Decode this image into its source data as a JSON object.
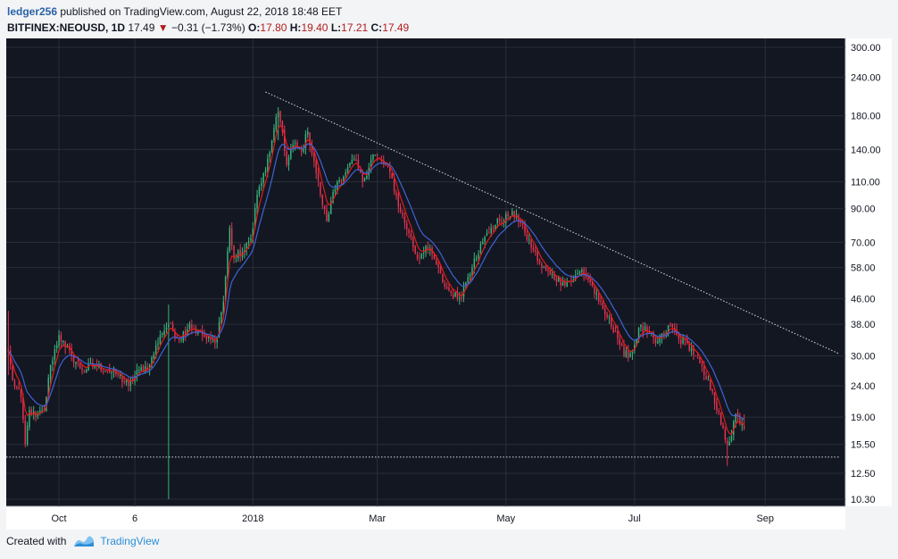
{
  "header": {
    "author": "ledger256",
    "published_text": " published on TradingView.com, August 22, 2018 18:48 EET",
    "symbol": "BITFINEX:NEOUSD, 1D",
    "last": "17.49",
    "change": "−0.31 (−1.73%)",
    "o_label": "O:",
    "o_value": "17.80",
    "h_label": "H:",
    "h_value": "19.40",
    "l_label": "L:",
    "l_value": "17.21",
    "c_label": "C:",
    "c_value": "17.49"
  },
  "footer": {
    "created_with": "Created with",
    "brand": "TradingView"
  },
  "colors": {
    "background": "#131722",
    "up": "#3bb37a",
    "down": "#e3344f",
    "ema_fast": "#e31b1b",
    "ema_slow": "#3f63d6",
    "trendline": "#d9d9d9",
    "grid": "#2a2e39"
  },
  "chart_data": {
    "type": "candlestick",
    "symbol": "BITFINEX:NEOUSD",
    "interval": "1D",
    "scale": "log",
    "ylim": [
      10.3,
      300
    ],
    "x_range": [
      "2017-09-06",
      "2018-10-09"
    ],
    "y_ticks": [
      300,
      240,
      180,
      140,
      110,
      90,
      70,
      58,
      46,
      38,
      30,
      24,
      19,
      15.5,
      12.5,
      10.3
    ],
    "y_tick_labels": [
      "300.00",
      "240.00",
      "180.00",
      "140.00",
      "110.00",
      "90.00",
      "70.00",
      "58.00",
      "46.00",
      "38.00",
      "30.00",
      "24.00",
      "19.00",
      "15.50",
      "12.50",
      "10.30"
    ],
    "x_ticks": [
      {
        "label": "Oct",
        "date": "2017-10-01"
      },
      {
        "label": "6",
        "date": "2017-11-06"
      },
      {
        "label": "2018",
        "date": "2018-01-01"
      },
      {
        "label": "Mar",
        "date": "2018-03-01"
      },
      {
        "label": "May",
        "date": "2018-05-01"
      },
      {
        "label": "Jul",
        "date": "2018-07-01"
      },
      {
        "label": "Sep",
        "date": "2018-09-01"
      }
    ],
    "price_anchors": [
      [
        "2017-09-07",
        31
      ],
      [
        "2017-09-09",
        25
      ],
      [
        "2017-09-13",
        22
      ],
      [
        "2017-09-15",
        15.5
      ],
      [
        "2017-09-17",
        20
      ],
      [
        "2017-09-20",
        19
      ],
      [
        "2017-09-24",
        20
      ],
      [
        "2017-09-27",
        28
      ],
      [
        "2017-10-01",
        35
      ],
      [
        "2017-10-04",
        32
      ],
      [
        "2017-10-07",
        30
      ],
      [
        "2017-10-12",
        27
      ],
      [
        "2017-10-18",
        28
      ],
      [
        "2017-10-24",
        27
      ],
      [
        "2017-10-29",
        26
      ],
      [
        "2017-11-03",
        24
      ],
      [
        "2017-11-08",
        27
      ],
      [
        "2017-11-13",
        28
      ],
      [
        "2017-11-18",
        35
      ],
      [
        "2017-11-22",
        38
      ],
      [
        "2017-11-27",
        34
      ],
      [
        "2017-12-02",
        38
      ],
      [
        "2017-12-06",
        36
      ],
      [
        "2017-12-10",
        34
      ],
      [
        "2017-12-14",
        33
      ],
      [
        "2017-12-18",
        45
      ],
      [
        "2017-12-21",
        78
      ],
      [
        "2017-12-23",
        62
      ],
      [
        "2017-12-28",
        66
      ],
      [
        "2017-12-31",
        72
      ],
      [
        "2018-01-03",
        100
      ],
      [
        "2018-01-07",
        120
      ],
      [
        "2018-01-10",
        150
      ],
      [
        "2018-01-13",
        185
      ],
      [
        "2018-01-15",
        160
      ],
      [
        "2018-01-17",
        125
      ],
      [
        "2018-01-20",
        145
      ],
      [
        "2018-01-24",
        138
      ],
      [
        "2018-01-27",
        160
      ],
      [
        "2018-01-30",
        128
      ],
      [
        "2018-02-02",
        100
      ],
      [
        "2018-02-05",
        82
      ],
      [
        "2018-02-07",
        95
      ],
      [
        "2018-02-10",
        110
      ],
      [
        "2018-02-14",
        118
      ],
      [
        "2018-02-18",
        130
      ],
      [
        "2018-02-22",
        110
      ],
      [
        "2018-02-27",
        135
      ],
      [
        "2018-03-03",
        128
      ],
      [
        "2018-03-07",
        118
      ],
      [
        "2018-03-12",
        88
      ],
      [
        "2018-03-16",
        75
      ],
      [
        "2018-03-20",
        62
      ],
      [
        "2018-03-24",
        68
      ],
      [
        "2018-03-28",
        62
      ],
      [
        "2018-04-01",
        52
      ],
      [
        "2018-04-05",
        48
      ],
      [
        "2018-04-09",
        46
      ],
      [
        "2018-04-12",
        52
      ],
      [
        "2018-04-16",
        62
      ],
      [
        "2018-04-20",
        70
      ],
      [
        "2018-04-24",
        78
      ],
      [
        "2018-04-28",
        82
      ],
      [
        "2018-05-02",
        85
      ],
      [
        "2018-05-06",
        86
      ],
      [
        "2018-05-10",
        75
      ],
      [
        "2018-05-14",
        66
      ],
      [
        "2018-05-18",
        58
      ],
      [
        "2018-05-22",
        55
      ],
      [
        "2018-05-28",
        52
      ],
      [
        "2018-06-02",
        53
      ],
      [
        "2018-06-06",
        57
      ],
      [
        "2018-06-10",
        52
      ],
      [
        "2018-06-14",
        45
      ],
      [
        "2018-06-18",
        40
      ],
      [
        "2018-06-22",
        36
      ],
      [
        "2018-06-26",
        30
      ],
      [
        "2018-06-30",
        31
      ],
      [
        "2018-07-03",
        37
      ],
      [
        "2018-07-07",
        36
      ],
      [
        "2018-07-11",
        33
      ],
      [
        "2018-07-15",
        35
      ],
      [
        "2018-07-18",
        38
      ],
      [
        "2018-07-22",
        34
      ],
      [
        "2018-07-26",
        33
      ],
      [
        "2018-07-30",
        30
      ],
      [
        "2018-08-03",
        26
      ],
      [
        "2018-08-07",
        23
      ],
      [
        "2018-08-11",
        18
      ],
      [
        "2018-08-14",
        15.5
      ],
      [
        "2018-08-16",
        16.5
      ],
      [
        "2018-08-18",
        19.5
      ],
      [
        "2018-08-20",
        18
      ],
      [
        "2018-08-22",
        17.49
      ]
    ],
    "wick_events": [
      {
        "date": "2017-11-22",
        "high": 44,
        "low": 10.3
      },
      {
        "date": "2017-09-07",
        "high": 42,
        "low": 26
      },
      {
        "date": "2018-01-13",
        "high": 192,
        "low": 150
      },
      {
        "date": "2018-08-14",
        "high": 16,
        "low": 13.2
      }
    ],
    "last_ohlc": {
      "open": 17.8,
      "high": 19.4,
      "low": 17.21,
      "close": 17.49
    },
    "indicators": [
      {
        "type": "ema",
        "period": 5
      },
      {
        "type": "ema",
        "period": 12
      }
    ],
    "drawings": [
      {
        "type": "trendline",
        "from": [
          "2018-01-07",
          215
        ],
        "to": [
          "2018-10-06",
          30.5
        ]
      },
      {
        "type": "horizontal_line",
        "value": 14.1,
        "from": "2017-09-06",
        "to": "2018-10-06"
      }
    ]
  }
}
